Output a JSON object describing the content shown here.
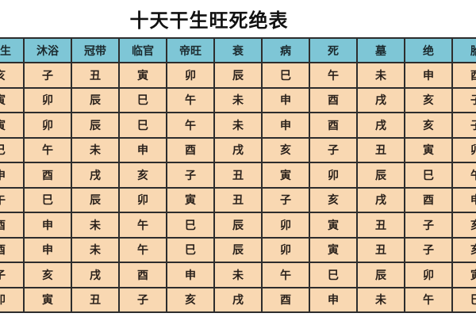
{
  "title": "十天干生旺死绝表",
  "table": {
    "columns": [
      "长生",
      "沐浴",
      "冠带",
      "临官",
      "帝旺",
      "衰",
      "病",
      "死",
      "墓",
      "绝",
      "胎"
    ],
    "rows": [
      [
        "亥",
        "子",
        "丑",
        "寅",
        "卯",
        "辰",
        "巳",
        "午",
        "未",
        "申",
        "酉"
      ],
      [
        "寅",
        "卯",
        "辰",
        "巳",
        "午",
        "未",
        "申",
        "酉",
        "戌",
        "亥",
        "子"
      ],
      [
        "寅",
        "卯",
        "辰",
        "巳",
        "午",
        "未",
        "申",
        "酉",
        "戌",
        "亥",
        "子"
      ],
      [
        "巳",
        "午",
        "未",
        "申",
        "酉",
        "戌",
        "亥",
        "子",
        "丑",
        "寅",
        "卯"
      ],
      [
        "申",
        "酉",
        "戌",
        "亥",
        "子",
        "丑",
        "寅",
        "卯",
        "辰",
        "巳",
        "午"
      ],
      [
        "午",
        "巳",
        "辰",
        "卯",
        "寅",
        "丑",
        "子",
        "亥",
        "戌",
        "酉",
        "申"
      ],
      [
        "酉",
        "申",
        "未",
        "午",
        "巳",
        "辰",
        "卯",
        "寅",
        "丑",
        "子",
        "亥"
      ],
      [
        "酉",
        "申",
        "未",
        "午",
        "巳",
        "辰",
        "卯",
        "寅",
        "丑",
        "子",
        "亥"
      ],
      [
        "子",
        "亥",
        "戌",
        "酉",
        "申",
        "未",
        "午",
        "巳",
        "辰",
        "卯",
        "寅"
      ],
      [
        "卯",
        "寅",
        "丑",
        "子",
        "亥",
        "戌",
        "酉",
        "申",
        "未",
        "午",
        "巳"
      ]
    ]
  },
  "colors": {
    "header_bg": "#7ec6d6",
    "cell_bg": "#f9d8b2",
    "border": "#2d2d2d",
    "text": "#2a211b"
  }
}
